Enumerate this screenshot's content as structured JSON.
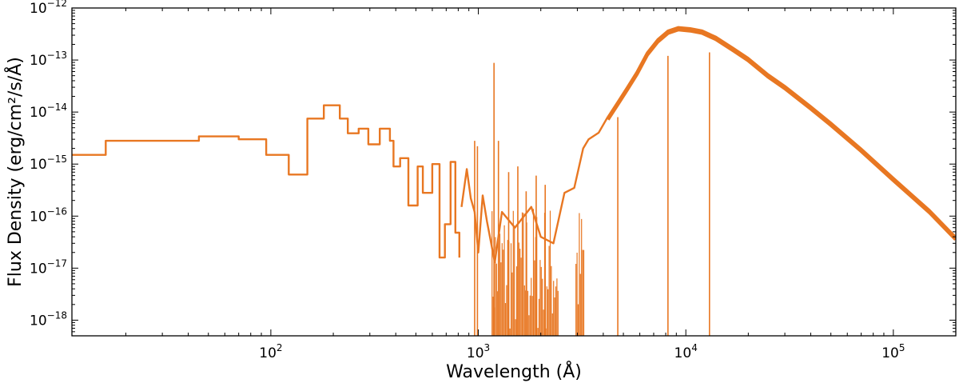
{
  "chart_data": {
    "type": "line",
    "title": "",
    "xlabel": "Wavelength (Å)",
    "ylabel": "Flux Density (erg/cm²/s/Å)",
    "x_scale": "log",
    "y_scale": "log",
    "xlim": [
      11,
      200000
    ],
    "ylim": [
      5e-19,
      1e-12
    ],
    "grid": false,
    "color": "#E87722",
    "x_ticks": [
      {
        "value": 100,
        "base": "10",
        "exp": "2"
      },
      {
        "value": 1000,
        "base": "10",
        "exp": "3"
      },
      {
        "value": 10000,
        "base": "10",
        "exp": "4"
      },
      {
        "value": 100000,
        "base": "10",
        "exp": "5"
      }
    ],
    "y_ticks": [
      {
        "value": 1e-18,
        "base": "10",
        "exp": "−18"
      },
      {
        "value": 1e-17,
        "base": "10",
        "exp": "−17"
      },
      {
        "value": 1e-16,
        "base": "10",
        "exp": "−16"
      },
      {
        "value": 1e-15,
        "base": "10",
        "exp": "−15"
      },
      {
        "value": 1e-14,
        "base": "10",
        "exp": "−14"
      },
      {
        "value": 1e-13,
        "base": "10",
        "exp": "−13"
      },
      {
        "value": 1e-12,
        "base": "10",
        "exp": "−12"
      }
    ],
    "series": [
      {
        "name": "",
        "mode": "steps",
        "x": [
          11,
          16,
          45,
          70,
          95,
          122,
          150,
          180,
          215,
          235,
          265,
          295,
          335,
          375,
          390,
          420,
          460,
          510,
          540,
          600,
          650,
          690,
          735,
          775,
          810
        ],
        "y": [
          1.5e-15,
          2.8e-15,
          3.4e-15,
          3e-15,
          1.5e-15,
          6.3e-16,
          7.5e-15,
          1.35e-14,
          7.5e-15,
          3.9e-15,
          4.8e-15,
          2.4e-15,
          4.8e-15,
          2.8e-15,
          9e-16,
          1.3e-15,
          1.6e-16,
          9e-16,
          2.8e-16,
          1e-15,
          1.6e-17,
          7e-17,
          1.1e-15,
          4.8e-17,
          1.6e-17
        ]
      },
      {
        "name": "",
        "mode": "line",
        "x": [
          830,
          880,
          920,
          960,
          1000,
          1050,
          1100,
          1200,
          1300,
          1500,
          1800,
          2000,
          2300,
          2600,
          2900,
          3200,
          3400,
          3800,
          4200,
          4700,
          5200,
          5800,
          6500,
          7300,
          8200,
          9200,
          10500,
          12000,
          14000,
          17000,
          20000,
          25000,
          30000,
          40000,
          50000,
          70000,
          100000,
          150000,
          200000
        ],
        "y": [
          1.5e-16,
          8e-16,
          2.2e-16,
          1.2e-16,
          2e-17,
          2.5e-16,
          8e-17,
          1.3e-17,
          1.2e-16,
          6e-17,
          1.5e-16,
          4e-17,
          3e-17,
          2.8e-16,
          3.5e-16,
          2e-15,
          3e-15,
          4e-15,
          8e-15,
          1.6e-14,
          3e-14,
          6e-14,
          1.4e-13,
          2.5e-13,
          3.7e-13,
          4.3e-13,
          4.1e-13,
          3.7e-13,
          2.8e-13,
          1.7e-13,
          1.1e-13,
          5.3e-14,
          3.2e-14,
          1.3e-14,
          6.3e-15,
          2e-15,
          5.5e-16,
          1.3e-16,
          4e-17
        ]
      }
    ],
    "spikes": [
      {
        "x": 960,
        "y": 2.8e-15
      },
      {
        "x": 990,
        "y": 2.2e-15
      },
      {
        "x": 1190,
        "y": 8.8e-14
      },
      {
        "x": 1250,
        "y": 2.8e-15
      },
      {
        "x": 1400,
        "y": 7e-16
      },
      {
        "x": 1550,
        "y": 9e-16
      },
      {
        "x": 1700,
        "y": 3e-16
      },
      {
        "x": 1900,
        "y": 6e-16
      },
      {
        "x": 2100,
        "y": 4e-16
      },
      {
        "x": 4700,
        "y": 8e-15
      },
      {
        "x": 8200,
        "y": 1.2e-13
      },
      {
        "x": 13000,
        "y": 1.4e-13
      }
    ],
    "noise_band": {
      "x_start": 1150,
      "x_end": 3250,
      "y_min": 5e-19,
      "y_max": 2e-16,
      "gap": [
        2450,
        2950
      ]
    }
  }
}
